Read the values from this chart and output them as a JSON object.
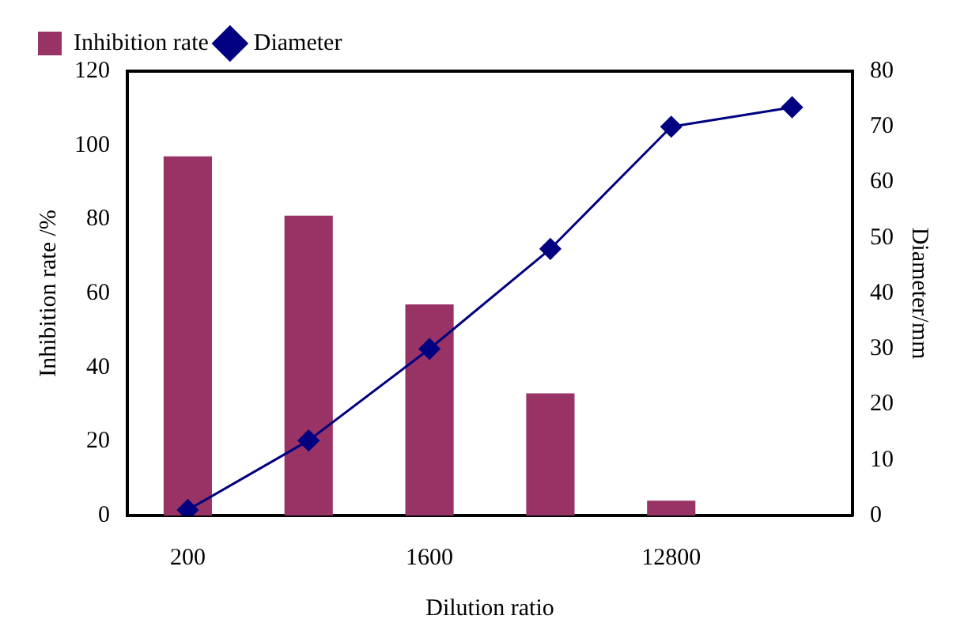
{
  "chart_data": {
    "type": "bar",
    "xlabel": "Dilution ratio",
    "ylabel": "Inhibition rate /%",
    "y2label": "Diameter/mm",
    "categories": [
      "200",
      null,
      "1600",
      null,
      "12800",
      null
    ],
    "series": [
      {
        "name": "Inhibition rate",
        "color": "#993366",
        "values": [
          97,
          81,
          57,
          33,
          4,
          null
        ]
      },
      {
        "name": "Diameter",
        "type": "line",
        "axis": "y2",
        "color": "#000080",
        "marker": "diamond",
        "values": [
          1,
          13.5,
          30,
          48,
          70,
          73.5
        ]
      }
    ],
    "ylim": [
      0,
      120
    ],
    "yticks": [
      0,
      20,
      40,
      60,
      80,
      100,
      120
    ],
    "y2lim": [
      0,
      80
    ],
    "y2ticks": [
      0,
      10,
      20,
      30,
      40,
      50,
      60,
      70,
      80
    ],
    "grid": false,
    "legend": "top left"
  }
}
